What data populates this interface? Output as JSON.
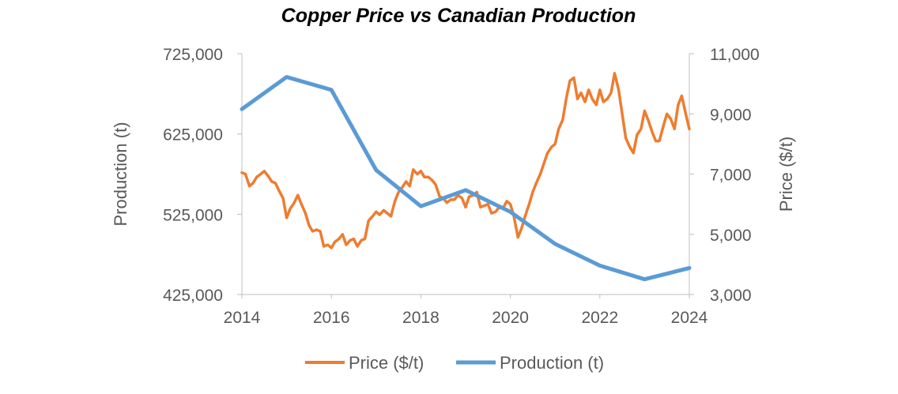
{
  "chart_data": {
    "type": "line",
    "title": "Copper Price vs Canadian Production",
    "xlabel": "",
    "ylabel_left": "Production (t)",
    "ylabel_right": "Price ($/t)",
    "xlim": [
      2014,
      2024
    ],
    "ylim_left": [
      425000,
      725000
    ],
    "ylim_right": [
      3000,
      11000
    ],
    "x_ticks": [
      2014,
      2016,
      2018,
      2020,
      2022,
      2024
    ],
    "x_tick_labels": [
      "2014",
      "2016",
      "2018",
      "2020",
      "2022",
      "2024"
    ],
    "y_left_ticks": [
      425000,
      525000,
      625000,
      725000
    ],
    "y_left_tick_labels": [
      "425,000",
      "525,000",
      "625,000",
      "725,000"
    ],
    "y_right_ticks": [
      3000,
      5000,
      7000,
      9000,
      11000
    ],
    "y_right_tick_labels": [
      "3,000",
      "5,000",
      "7,000",
      "9,000",
      "11,000"
    ],
    "grid": false,
    "legend_position": "bottom",
    "series": [
      {
        "name": "Price ($/t)",
        "axis": "right",
        "color": "#ED7D31",
        "x": [
          2014.0,
          2014.08,
          2014.17,
          2014.25,
          2014.33,
          2014.42,
          2014.5,
          2014.58,
          2014.67,
          2014.75,
          2014.83,
          2014.92,
          2015.0,
          2015.08,
          2015.17,
          2015.25,
          2015.33,
          2015.42,
          2015.5,
          2015.58,
          2015.67,
          2015.75,
          2015.83,
          2015.92,
          2016.0,
          2016.08,
          2016.17,
          2016.25,
          2016.33,
          2016.42,
          2016.5,
          2016.58,
          2016.67,
          2016.75,
          2016.83,
          2016.92,
          2017.0,
          2017.08,
          2017.17,
          2017.25,
          2017.33,
          2017.42,
          2017.5,
          2017.58,
          2017.67,
          2017.75,
          2017.83,
          2017.92,
          2018.0,
          2018.08,
          2018.17,
          2018.25,
          2018.33,
          2018.42,
          2018.5,
          2018.58,
          2018.67,
          2018.75,
          2018.83,
          2018.92,
          2019.0,
          2019.08,
          2019.17,
          2019.25,
          2019.33,
          2019.42,
          2019.5,
          2019.58,
          2019.67,
          2019.75,
          2019.83,
          2019.92,
          2020.0,
          2020.08,
          2020.17,
          2020.25,
          2020.33,
          2020.42,
          2020.5,
          2020.58,
          2020.67,
          2020.75,
          2020.83,
          2020.92,
          2021.0,
          2021.08,
          2021.17,
          2021.25,
          2021.33,
          2021.42,
          2021.5,
          2021.58,
          2021.67,
          2021.75,
          2021.83,
          2021.92,
          2022.0,
          2022.08,
          2022.17,
          2022.25,
          2022.33,
          2022.42,
          2022.5,
          2022.58,
          2022.67,
          2022.75,
          2022.83,
          2022.92,
          2023.0,
          2023.08,
          2023.17,
          2023.25,
          2023.33,
          2023.42,
          2023.5,
          2023.58,
          2023.67,
          2023.75,
          2023.83,
          2023.92,
          2024.0
        ],
        "values": [
          7050,
          7000,
          6600,
          6700,
          6900,
          7000,
          7100,
          6950,
          6750,
          6700,
          6450,
          6200,
          5550,
          5850,
          6050,
          6300,
          6000,
          5700,
          5300,
          5100,
          5150,
          5100,
          4600,
          4650,
          4550,
          4750,
          4850,
          5000,
          4650,
          4800,
          4850,
          4600,
          4800,
          4850,
          5450,
          5600,
          5750,
          5650,
          5800,
          5700,
          5600,
          6100,
          6400,
          6550,
          6750,
          6600,
          7150,
          7000,
          7100,
          6900,
          6900,
          6800,
          6650,
          6250,
          6200,
          6050,
          6150,
          6150,
          6300,
          6200,
          5900,
          6250,
          6300,
          6400,
          5900,
          5950,
          6000,
          5700,
          5750,
          5900,
          5850,
          6100,
          6000,
          5600,
          4900,
          5200,
          5600,
          6000,
          6400,
          6700,
          7000,
          7350,
          7700,
          7900,
          8000,
          8500,
          8800,
          9500,
          10100,
          10200,
          9500,
          9700,
          9400,
          9800,
          9500,
          9300,
          9800,
          9400,
          9500,
          9700,
          10350,
          9800,
          9000,
          8200,
          7900,
          7700,
          8300,
          8500,
          9100,
          8800,
          8400,
          8100,
          8100,
          8600,
          9000,
          8850,
          8500,
          9300,
          9600,
          9000,
          8500
        ]
      },
      {
        "name": "Production (t)",
        "axis": "left",
        "color": "#5B9BD5",
        "x": [
          2014,
          2015,
          2016,
          2017,
          2018,
          2019,
          2020,
          2021,
          2022,
          2023,
          2024
        ],
        "values": [
          656000,
          696000,
          680000,
          580000,
          535000,
          555000,
          528000,
          488000,
          461000,
          444000,
          458000
        ]
      }
    ]
  }
}
